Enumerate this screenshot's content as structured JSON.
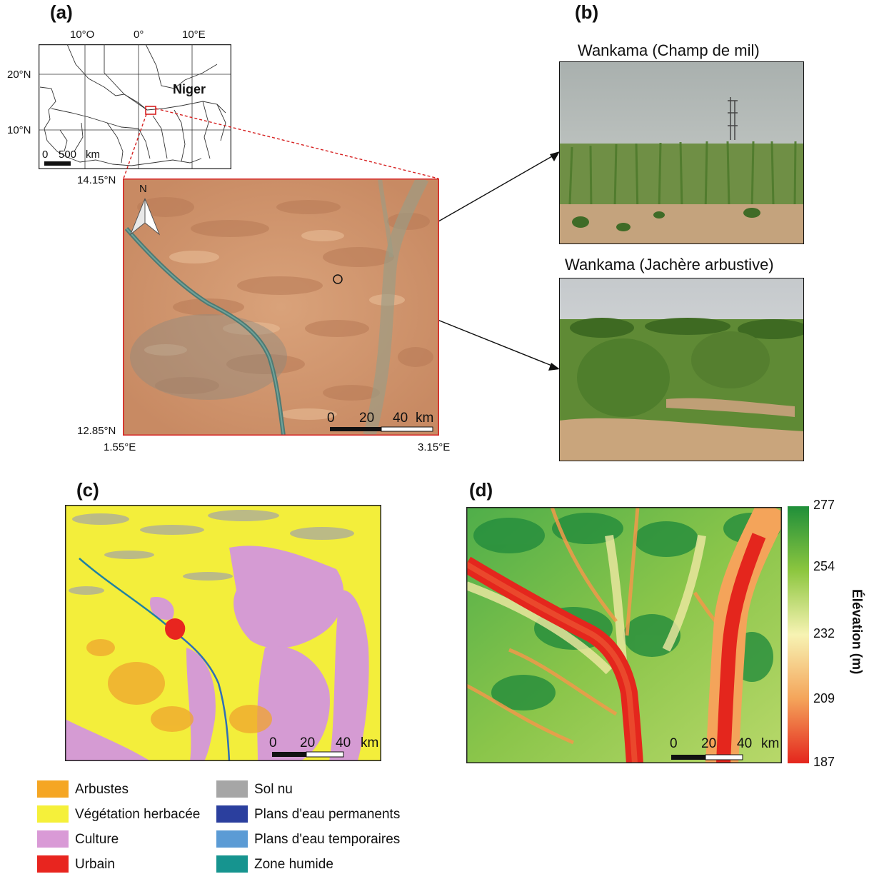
{
  "panels": {
    "a": "(a)",
    "b": "(b)",
    "c": "(c)",
    "d": "(d)"
  },
  "inset_map": {
    "lon_ticks": [
      "10°O",
      "0°",
      "10°E"
    ],
    "lat_ticks": [
      "20°N",
      "10°N"
    ],
    "country_label": "Niger",
    "scale_labels": [
      "0",
      "500",
      "km"
    ]
  },
  "satellite_map": {
    "north_label": "N",
    "corner_labels": {
      "top_left_lat": "14.15°N",
      "bottom_left_lat": "12.85°N",
      "left_lon": "1.55°E",
      "right_lon": "3.15°E"
    },
    "scale_labels": [
      "0",
      "20",
      "40",
      "km"
    ]
  },
  "photos": [
    {
      "title": "Wankama (Champ de mil)"
    },
    {
      "title": "Wankama (Jachère arbustive)"
    }
  ],
  "landcover_map": {
    "scale_labels": [
      "0",
      "20",
      "40",
      "km"
    ],
    "legend": [
      {
        "label": "Arbustes",
        "color": "#f5a623"
      },
      {
        "label": "Végétation herbacée",
        "color": "#f5f03a"
      },
      {
        "label": "Culture",
        "color": "#d99ad6"
      },
      {
        "label": "Urbain",
        "color": "#e8251f"
      },
      {
        "label": "Sol nu",
        "color": "#a6a6a6"
      },
      {
        "label": "Plans d'eau permanents",
        "color": "#2b3f9e"
      },
      {
        "label": "Plans d'eau temporaires",
        "color": "#5b9bd5"
      },
      {
        "label": "Zone humide",
        "color": "#16948f"
      }
    ]
  },
  "elevation_map": {
    "scale_labels": [
      "0",
      "20",
      "40",
      "km"
    ],
    "colorbar_title": "Élévation (m)",
    "colorbar_ticks": [
      "277",
      "254",
      "232",
      "209",
      "187"
    ],
    "colorbar_colors": [
      "#1f8f3a",
      "#8cc63f",
      "#f7f3b3",
      "#f4a45a",
      "#e4261d"
    ]
  }
}
